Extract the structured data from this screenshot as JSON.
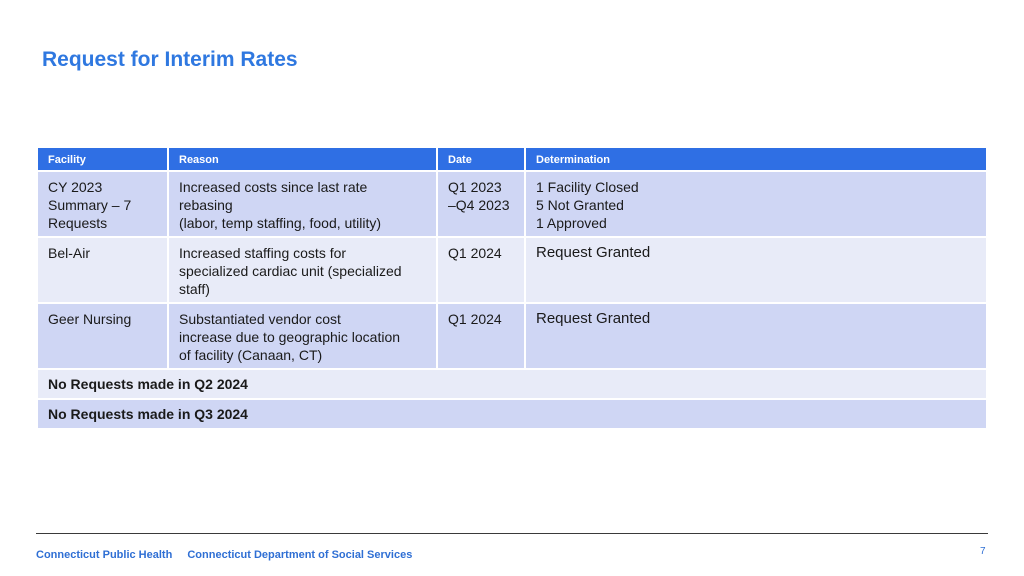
{
  "slide": {
    "title": "Request for Interim Rates",
    "page_number": "7"
  },
  "table": {
    "headers": [
      "Facility",
      "Reason",
      "Date",
      "Determination"
    ],
    "rows": [
      {
        "facility": " CY 2023\nSummary – 7\nRequests",
        "reason": "Increased costs since last rate\nrebasing\n(labor, temp staffing, food, utility)",
        "date": "Q1 2023\n–Q4 2023",
        "determination": "1 Facility Closed\n5 Not Granted\n1 Approved"
      },
      {
        "facility": "Bel-Air",
        "reason": "Increased staffing costs for\nspecialized cardiac unit (specialized\nstaff)",
        "date": "Q1 2024",
        "determination": "Request Granted"
      },
      {
        "facility": "Geer Nursing",
        "reason": "Substantiated vendor cost\nincrease due to geographic location\nof facility (Canaan, CT)",
        "date": "Q1 2024",
        "determination": "Request Granted"
      }
    ],
    "notes": [
      "No Requests made in Q2 2024",
      "No Requests made in Q3 2024"
    ]
  },
  "footer": {
    "left": "Connecticut Public Health",
    "right": "Connecticut Department of Social Services"
  }
}
